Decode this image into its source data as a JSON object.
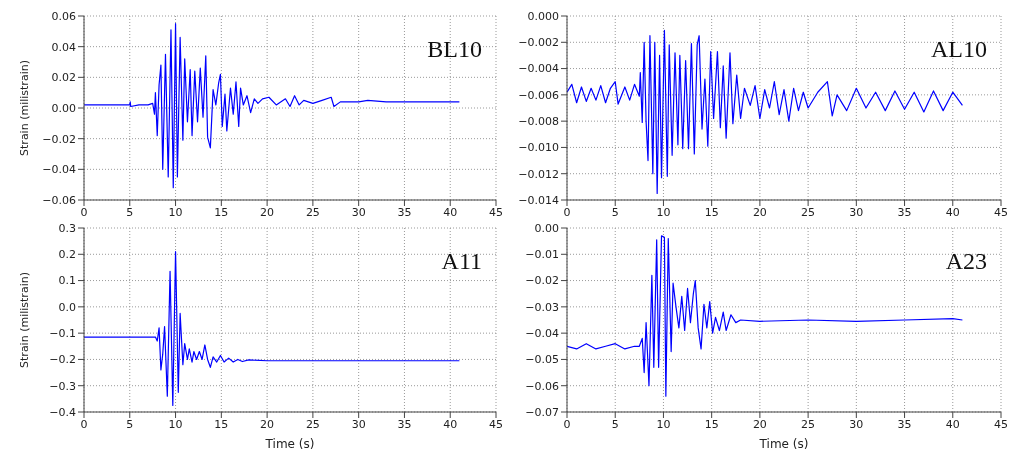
{
  "chart_data": [
    {
      "type": "line",
      "ylabel": "Strain (milistrain)",
      "annotations": [
        "BL10"
      ],
      "grid": true,
      "xlim": [
        0,
        45
      ],
      "xticks": [
        0,
        5,
        10,
        15,
        20,
        25,
        30,
        35,
        40,
        45
      ],
      "ylim": [
        -0.06,
        0.06
      ],
      "yticks": [
        {
          "value": -0.06,
          "label": "−0.06"
        },
        {
          "value": -0.04,
          "label": "−0.04"
        },
        {
          "value": -0.02,
          "label": "−0.02"
        },
        {
          "value": 0,
          "label": "0.00"
        },
        {
          "value": 0.02,
          "label": "0.02"
        },
        {
          "value": 0.04,
          "label": "0.04"
        },
        {
          "value": 0.06,
          "label": "0.06"
        }
      ],
      "series": [
        {
          "color": "#0000ff",
          "x": [
            0,
            5,
            5.05,
            5.1,
            6,
            7,
            7.5,
            7.7,
            7.8,
            8.0,
            8.2,
            8.4,
            8.6,
            8.9,
            9.2,
            9.5,
            9.75,
            10.0,
            10.2,
            10.5,
            10.8,
            11.0,
            11.3,
            11.6,
            11.8,
            12.1,
            12.4,
            12.7,
            13.0,
            13.3,
            13.5,
            13.8,
            14.1,
            14.4,
            14.7,
            14.9,
            15.1,
            15.4,
            15.6,
            16.0,
            16.3,
            16.6,
            16.9,
            17.1,
            17.4,
            17.8,
            18.2,
            18.6,
            19.0,
            19.5,
            20.2,
            21,
            22,
            22.5,
            23,
            23.5,
            24,
            25,
            26,
            27,
            27.3,
            28,
            30,
            31,
            33,
            35,
            41
          ],
          "values": [
            0.002,
            0.002,
            0.004,
            0.001,
            0.002,
            0.002,
            0.003,
            -0.004,
            0.01,
            -0.018,
            0.015,
            0.028,
            -0.04,
            0.035,
            -0.045,
            0.051,
            -0.052,
            0.055,
            -0.045,
            0.046,
            -0.021,
            0.032,
            -0.009,
            0.025,
            -0.018,
            0.024,
            -0.009,
            0.026,
            -0.006,
            0.034,
            -0.019,
            -0.026,
            0.012,
            0.002,
            0.016,
            0.022,
            -0.012,
            0.009,
            -0.015,
            0.013,
            -0.004,
            0.017,
            -0.012,
            0.013,
            0.002,
            0.008,
            -0.003,
            0.006,
            0.003,
            0.006,
            0.007,
            0.002,
            0.006,
            0.001,
            0.008,
            0.002,
            0.005,
            0.003,
            0.005,
            0.007,
            0.001,
            0.004,
            0.004,
            0.005,
            0.004,
            0.004,
            0.004
          ]
        }
      ]
    },
    {
      "type": "line",
      "annotations": [
        "AL10"
      ],
      "grid": true,
      "xlim": [
        0,
        45
      ],
      "xticks": [
        0,
        5,
        10,
        15,
        20,
        25,
        30,
        35,
        40,
        45
      ],
      "ylim": [
        -0.014,
        0
      ],
      "yticks": [
        {
          "value": -0.014,
          "label": "−0.014"
        },
        {
          "value": -0.012,
          "label": "−0.012"
        },
        {
          "value": -0.01,
          "label": "−0.010"
        },
        {
          "value": -0.008,
          "label": "−0.008"
        },
        {
          "value": -0.006,
          "label": "−0.006"
        },
        {
          "value": -0.004,
          "label": "−0.004"
        },
        {
          "value": -0.002,
          "label": "−0.002"
        },
        {
          "value": 0,
          "label": "0.000"
        }
      ],
      "series": [
        {
          "color": "#0000ff",
          "x": [
            0,
            0.5,
            1,
            1.5,
            2,
            2.5,
            3,
            3.5,
            4,
            4.5,
            5,
            5.3,
            6,
            6.5,
            7,
            7.5,
            7.6,
            7.8,
            8.0,
            8.2,
            8.4,
            8.6,
            8.9,
            9.1,
            9.35,
            9.6,
            9.8,
            10.1,
            10.4,
            10.6,
            10.9,
            11.2,
            11.5,
            11.7,
            12.0,
            12.3,
            12.6,
            12.9,
            13.2,
            13.5,
            13.7,
            14.0,
            14.3,
            14.6,
            14.9,
            15.2,
            15.6,
            15.9,
            16.2,
            16.5,
            16.9,
            17.2,
            17.6,
            18.0,
            18.4,
            19,
            19.5,
            20,
            20.5,
            21,
            21.5,
            22,
            22.5,
            23,
            23.5,
            24,
            24.5,
            25,
            26,
            27,
            27.5,
            28,
            29,
            30,
            31,
            32,
            33,
            34,
            35,
            36,
            37,
            38,
            39,
            40,
            41
          ],
          "values": [
            -0.0058,
            -0.0052,
            -0.0066,
            -0.0054,
            -0.0065,
            -0.0055,
            -0.0064,
            -0.0053,
            -0.0066,
            -0.0055,
            -0.005,
            -0.0067,
            -0.0054,
            -0.0064,
            -0.0052,
            -0.0061,
            -0.0043,
            -0.0081,
            -0.002,
            -0.008,
            -0.011,
            -0.0015,
            -0.012,
            -0.002,
            -0.0135,
            -0.003,
            -0.0123,
            -0.0011,
            -0.0122,
            -0.0022,
            -0.0106,
            -0.0028,
            -0.0098,
            -0.003,
            -0.0101,
            -0.0034,
            -0.0101,
            -0.0021,
            -0.0105,
            -0.0022,
            -0.0015,
            -0.0086,
            -0.0048,
            -0.0099,
            -0.0027,
            -0.0078,
            -0.0027,
            -0.0085,
            -0.0038,
            -0.0093,
            -0.0028,
            -0.0082,
            -0.0045,
            -0.0078,
            -0.0055,
            -0.0068,
            -0.0053,
            -0.0078,
            -0.0056,
            -0.007,
            -0.005,
            -0.0075,
            -0.0056,
            -0.008,
            -0.0055,
            -0.0072,
            -0.0058,
            -0.007,
            -0.0058,
            -0.005,
            -0.0076,
            -0.006,
            -0.0072,
            -0.0055,
            -0.007,
            -0.0058,
            -0.0072,
            -0.0057,
            -0.0071,
            -0.0058,
            -0.0073,
            -0.0057,
            -0.0072,
            -0.0058,
            -0.0068
          ]
        }
      ]
    },
    {
      "type": "line",
      "ylabel": "Strain (milistrain)",
      "xlabel": "Time (s)",
      "annotations": [
        "A11"
      ],
      "grid": true,
      "xlim": [
        0,
        45
      ],
      "xticks": [
        0,
        5,
        10,
        15,
        20,
        25,
        30,
        35,
        40,
        45
      ],
      "ylim": [
        -0.4,
        0.3
      ],
      "yticks": [
        {
          "value": -0.4,
          "label": "−0.4"
        },
        {
          "value": -0.3,
          "label": "−0.3"
        },
        {
          "value": -0.2,
          "label": "−0.2"
        },
        {
          "value": -0.1,
          "label": "−0.1"
        },
        {
          "value": 0,
          "label": "0.0"
        },
        {
          "value": 0.1,
          "label": "0.1"
        },
        {
          "value": 0.2,
          "label": "0.2"
        },
        {
          "value": 0.3,
          "label": "0.3"
        }
      ],
      "series": [
        {
          "color": "#0000ff",
          "x": [
            0,
            7.8,
            8.0,
            8.2,
            8.4,
            8.6,
            8.8,
            9.1,
            9.4,
            9.7,
            10.0,
            10.3,
            10.5,
            10.8,
            11.0,
            11.3,
            11.5,
            11.8,
            12.0,
            12.3,
            12.6,
            12.9,
            13.2,
            13.5,
            13.8,
            14.1,
            14.5,
            14.9,
            15.3,
            15.8,
            16.3,
            16.8,
            17.3,
            18,
            20,
            41
          ],
          "values": [
            -0.115,
            -0.115,
            -0.13,
            -0.08,
            -0.24,
            -0.18,
            -0.075,
            -0.34,
            0.135,
            -0.375,
            0.21,
            -0.325,
            -0.025,
            -0.22,
            -0.14,
            -0.2,
            -0.16,
            -0.21,
            -0.17,
            -0.2,
            -0.17,
            -0.2,
            -0.145,
            -0.2,
            -0.23,
            -0.19,
            -0.21,
            -0.185,
            -0.21,
            -0.195,
            -0.21,
            -0.2,
            -0.208,
            -0.202,
            -0.205,
            -0.205
          ]
        }
      ]
    },
    {
      "type": "line",
      "xlabel": "Time (s)",
      "annotations": [
        "A23"
      ],
      "grid": true,
      "xlim": [
        0,
        45
      ],
      "xticks": [
        0,
        5,
        10,
        15,
        20,
        25,
        30,
        35,
        40,
        45
      ],
      "ylim": [
        -0.07,
        0
      ],
      "yticks": [
        {
          "value": -0.07,
          "label": "−0.07"
        },
        {
          "value": -0.06,
          "label": "−0.06"
        },
        {
          "value": -0.05,
          "label": "−0.05"
        },
        {
          "value": -0.04,
          "label": "−0.04"
        },
        {
          "value": -0.03,
          "label": "−0.03"
        },
        {
          "value": -0.02,
          "label": "−0.02"
        },
        {
          "value": -0.01,
          "label": "−0.01"
        },
        {
          "value": 0,
          "label": "0.00"
        }
      ],
      "series": [
        {
          "color": "#0000ff",
          "x": [
            0,
            1,
            2,
            3,
            4,
            5,
            6,
            7,
            7.5,
            7.8,
            8.0,
            8.2,
            8.5,
            8.8,
            9.0,
            9.3,
            9.5,
            9.8,
            10.1,
            10.25,
            10.5,
            10.8,
            11.0,
            11.3,
            11.6,
            11.9,
            12.2,
            12.5,
            12.8,
            13.1,
            13.3,
            13.6,
            13.9,
            14.2,
            14.5,
            14.8,
            15.1,
            15.4,
            15.8,
            16.2,
            16.5,
            17,
            17.5,
            18,
            20,
            25,
            30,
            35,
            40,
            41
          ],
          "values": [
            -0.045,
            -0.046,
            -0.044,
            -0.046,
            -0.045,
            -0.044,
            -0.046,
            -0.045,
            -0.045,
            -0.042,
            -0.055,
            -0.036,
            -0.06,
            -0.018,
            -0.053,
            -0.0045,
            -0.053,
            -0.003,
            -0.0035,
            -0.064,
            -0.004,
            -0.047,
            -0.021,
            -0.03,
            -0.038,
            -0.026,
            -0.039,
            -0.023,
            -0.036,
            -0.025,
            -0.02,
            -0.038,
            -0.046,
            -0.029,
            -0.038,
            -0.028,
            -0.04,
            -0.034,
            -0.039,
            -0.032,
            -0.039,
            -0.033,
            -0.036,
            -0.035,
            -0.0355,
            -0.035,
            -0.0355,
            -0.035,
            -0.0345,
            -0.035
          ]
        }
      ]
    }
  ]
}
